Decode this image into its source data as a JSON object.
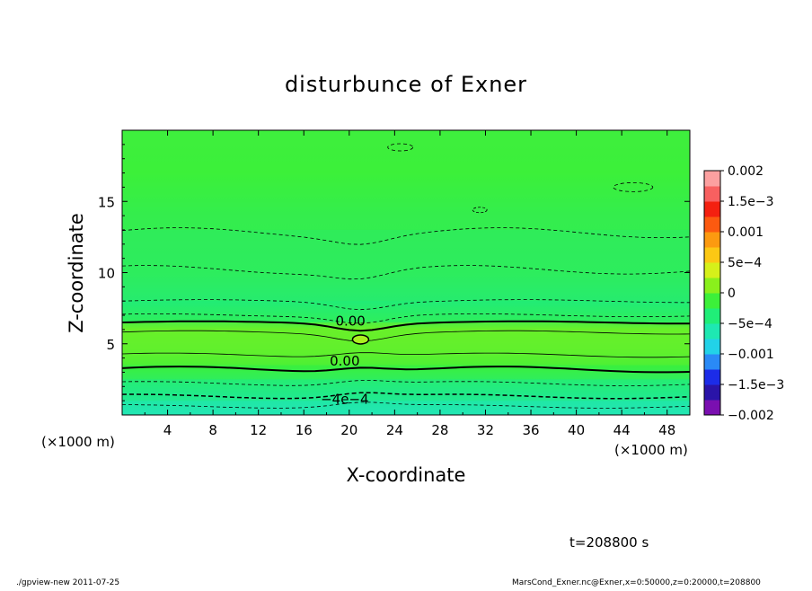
{
  "chart_data": {
    "type": "heatmap",
    "title": "disturbunce of Exner",
    "xlabel": "X-coordinate",
    "ylabel": "Z-coordinate",
    "x_unit": "(×1000 m)",
    "x_unit_right": "(×1000 m)",
    "xlim": [
      0,
      50
    ],
    "ylim": [
      0,
      20
    ],
    "x_ticks": [
      4,
      8,
      12,
      16,
      20,
      24,
      28,
      32,
      36,
      40,
      44,
      48
    ],
    "x_tick_labels": [
      "4",
      "8",
      "12",
      "16",
      "20",
      "24",
      "28",
      "32",
      "36",
      "40",
      "44",
      "48"
    ],
    "y_ticks": [
      5,
      10,
      15
    ],
    "y_tick_labels": [
      "5",
      "10",
      "15"
    ],
    "colorbar": {
      "levels": [
        -0.002,
        -0.0015,
        -0.001,
        -0.0005,
        0,
        0.0005,
        0.001,
        0.0015,
        0.002
      ],
      "labels": [
        "−0.002",
        "−1.5e−3",
        "−0.001",
        "−5e−4",
        "0",
        "5e−4",
        "0.001",
        "1.5e−3",
        "0.002"
      ],
      "colors": [
        "#7a0fb0",
        "#2a14a8",
        "#1c2ce8",
        "#2a8af6",
        "#22d2e8",
        "#1ee8b2",
        "#20ee78",
        "#3cf03a",
        "#8af01c",
        "#d6f01a",
        "#fcc814",
        "#fc9a10",
        "#fc5a10",
        "#f42010",
        "#f86060",
        "#fca0a0"
      ]
    },
    "contour_labels": [
      {
        "text": "0.00",
        "x": 19.0,
        "z": 6.6
      },
      {
        "text": "0.00",
        "x": 18.5,
        "z": 3.8
      },
      {
        "text": "−4e−4",
        "x": 18.5,
        "z": 1.1
      }
    ],
    "bands": [
      {
        "z": [
          0,
          1
        ],
        "value": -0.0006,
        "color": "#1ee8b2"
      },
      {
        "z": [
          1,
          2.5
        ],
        "value": -0.0004,
        "color": "#20ee78"
      },
      {
        "z": [
          2.5,
          3.5
        ],
        "value": -0.0002,
        "color": "#3cf03a"
      },
      {
        "z": [
          3.5,
          6.5
        ],
        "value": 0.0002,
        "color": "#72f028"
      },
      {
        "z": [
          6.5,
          8
        ],
        "value": -0.0002,
        "color": "#22ee6e"
      },
      {
        "z": [
          8,
          13
        ],
        "value": -0.0004,
        "color": "#30ec5a"
      },
      {
        "z": [
          13,
          20
        ],
        "value": -0.0002,
        "color": "#3cf03a"
      }
    ]
  },
  "footer": {
    "time_label": "t=208800 s",
    "left_info": "./gpview-new 2011-07-25",
    "right_info": "MarsCond_Exner.nc@Exner,x=0:50000,z=0:20000,t=208800"
  }
}
